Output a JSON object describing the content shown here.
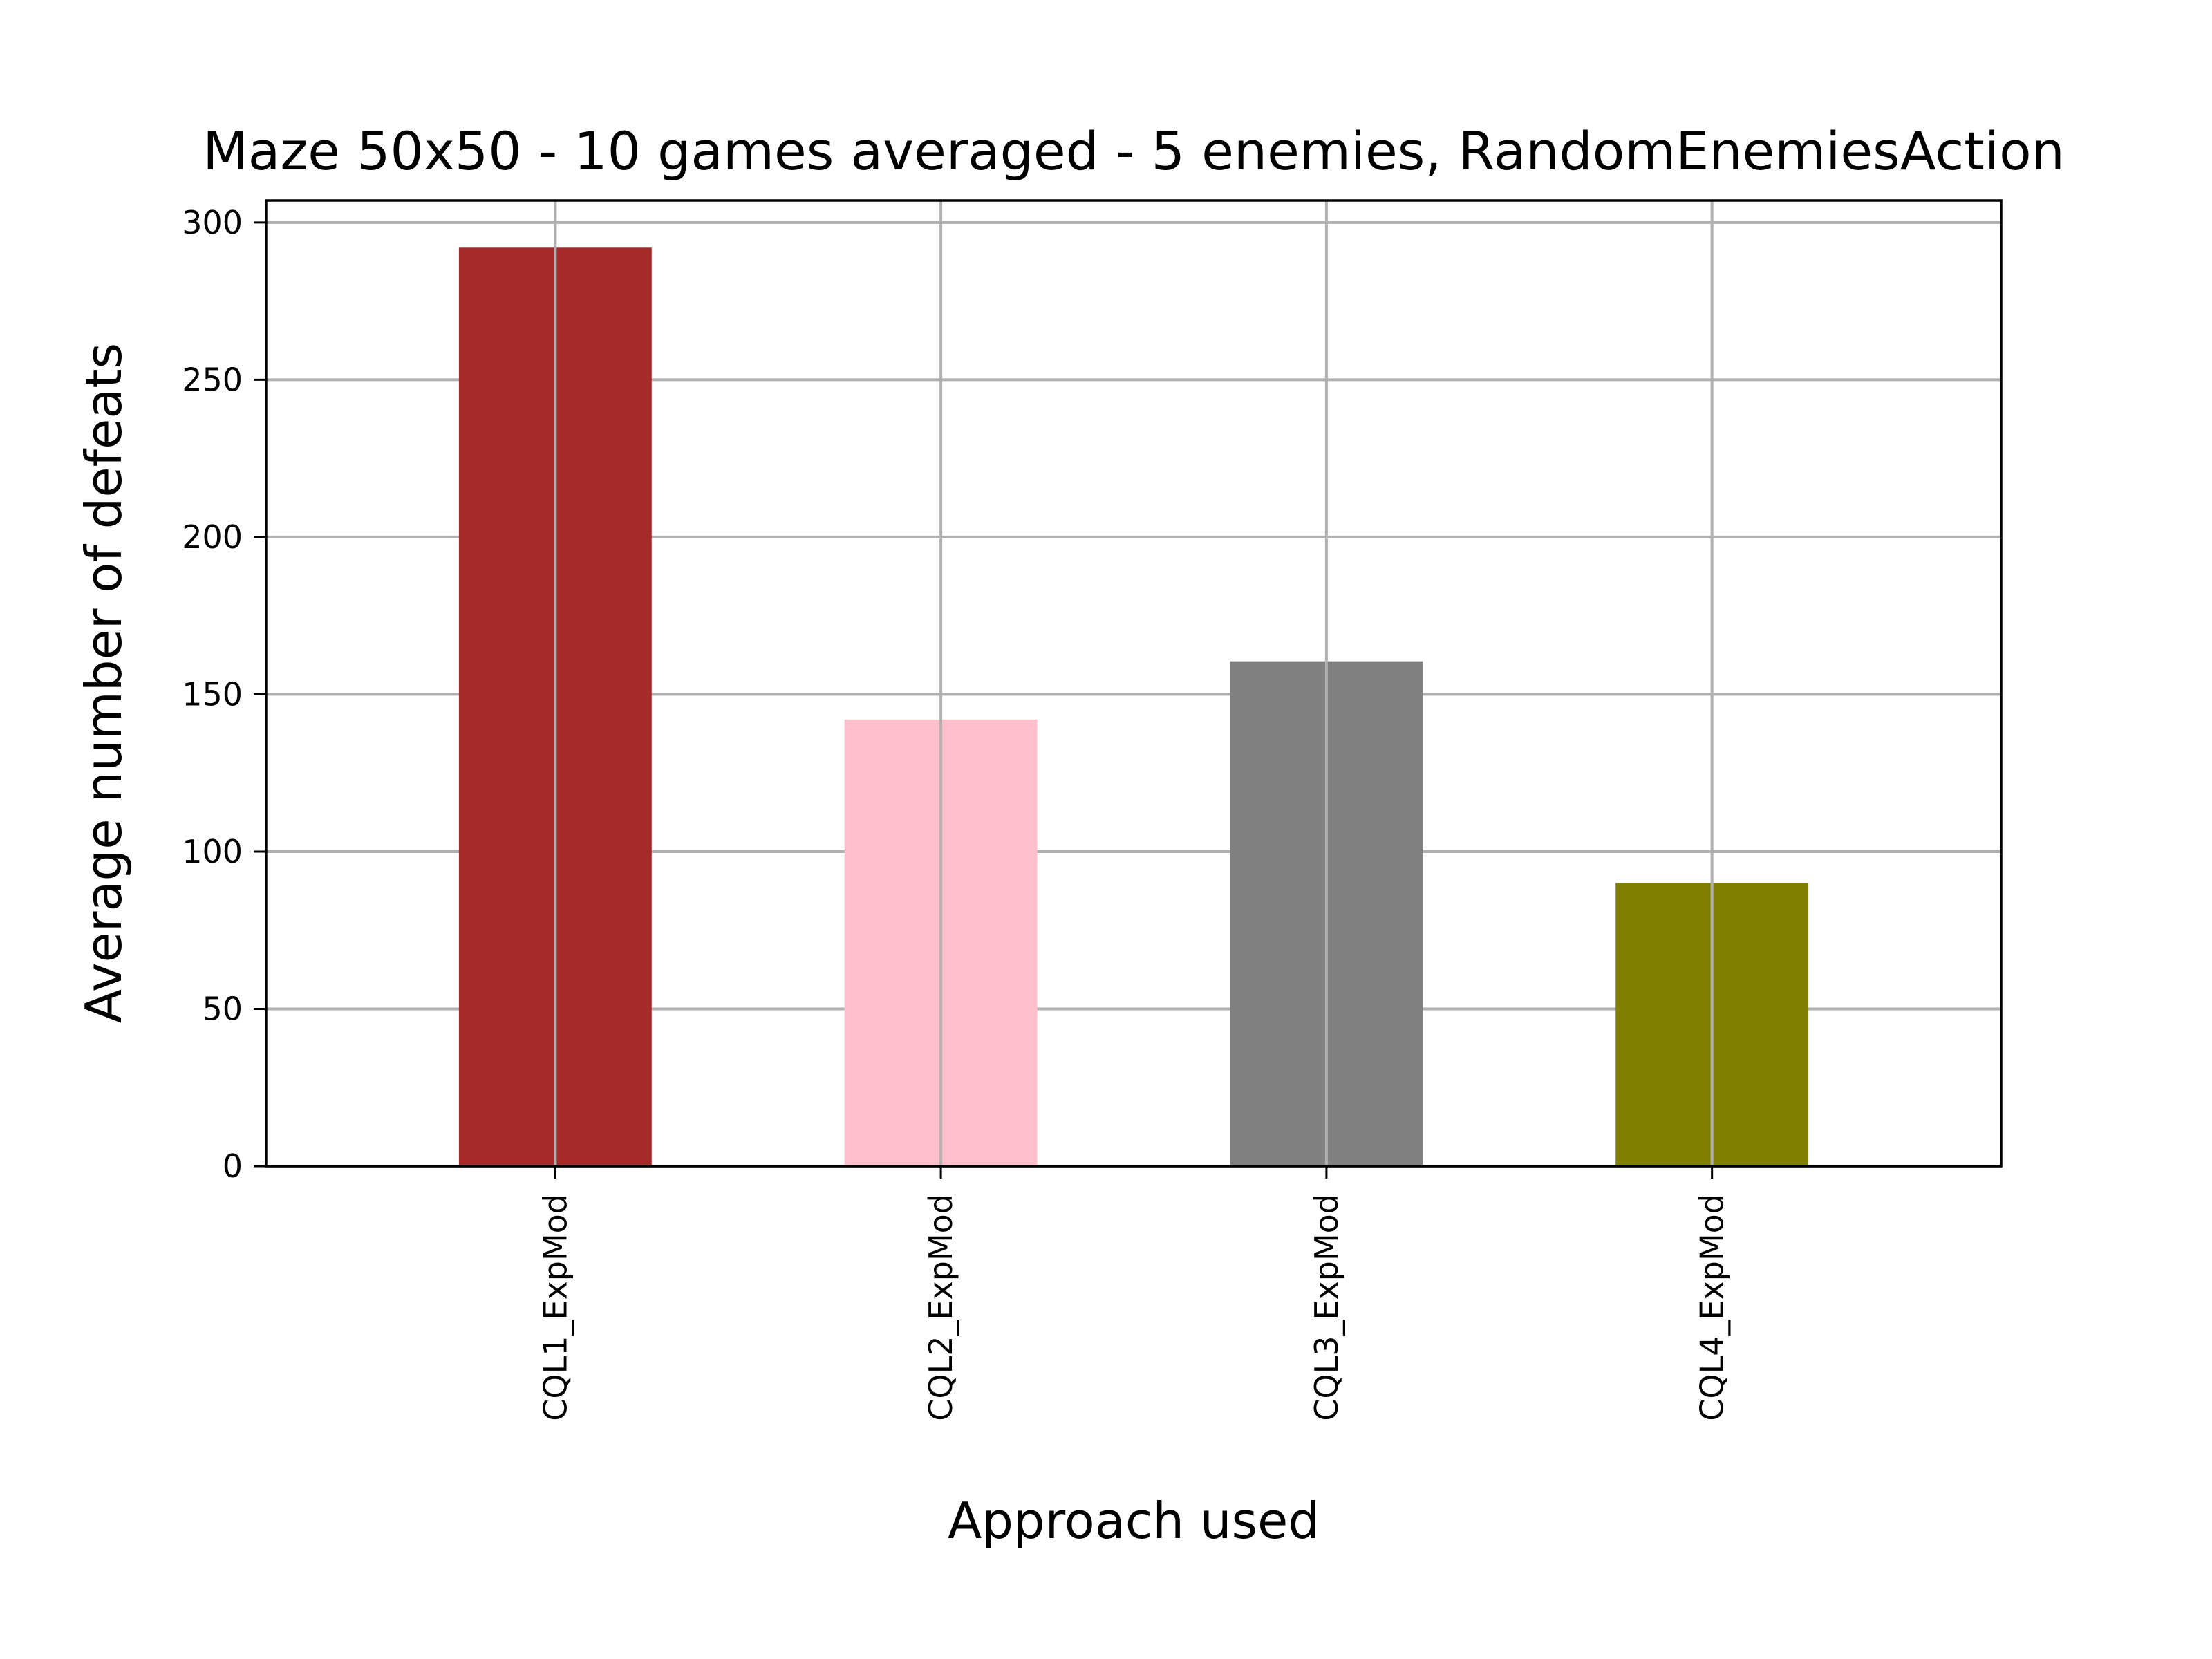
{
  "chart_data": {
    "type": "bar",
    "title": "Maze 50x50 - 10 games averaged - 5 enemies, RandomEnemiesAction",
    "xlabel": "Approach used",
    "ylabel": "Average number of defeats",
    "categories": [
      "CQL1_ExpMod",
      "CQL2_ExpMod",
      "CQL3_ExpMod",
      "CQL4_ExpMod"
    ],
    "values": [
      292,
      142,
      160.5,
      90
    ],
    "colors": [
      "#a52a2a",
      "#ffc0cb",
      "#808080",
      "#808000"
    ],
    "ylim": [
      0,
      307
    ],
    "yticks": [
      0,
      50,
      100,
      150,
      200,
      250,
      300
    ],
    "grid": true,
    "x_tick_rotation": "vertical",
    "legend": "none"
  }
}
